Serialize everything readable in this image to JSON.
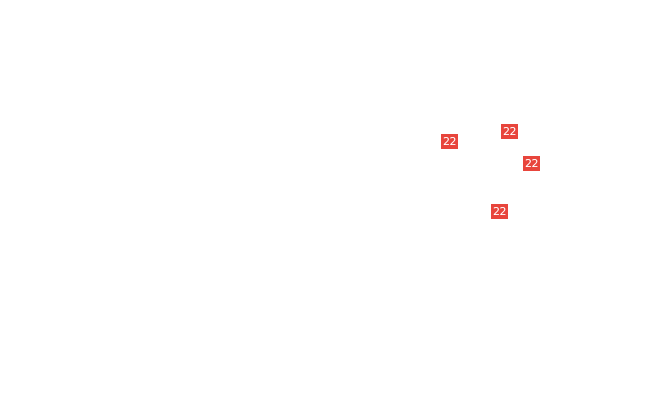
{
  "badge_color": "#e8453c",
  "badges": [
    {
      "label": "22"
    },
    {
      "label": "22"
    },
    {
      "label": "22"
    },
    {
      "label": "22"
    }
  ]
}
